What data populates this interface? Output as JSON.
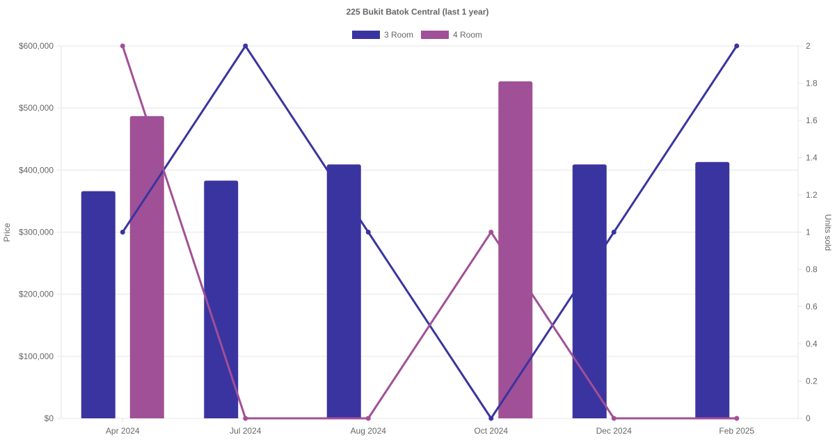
{
  "chart_data": {
    "type": "bar",
    "title": "225 Bukit Batok Central (last 1 year)",
    "categories": [
      "Apr 2024",
      "Jul 2024",
      "Aug 2024",
      "Oct 2024",
      "Dec 2024",
      "Feb 2025"
    ],
    "y_left": {
      "label": "Price",
      "ylim": [
        0,
        600000
      ],
      "ticks": [
        "$0",
        "$100,000",
        "$200,000",
        "$300,000",
        "$400,000",
        "$500,000",
        "$600,000"
      ]
    },
    "y_right": {
      "label": "Units sold",
      "ylim": [
        0,
        2
      ],
      "ticks": [
        "0",
        "0.2",
        "0.4",
        "0.6",
        "0.8",
        "1",
        "1.2",
        "1.4",
        "1.6",
        "1.8",
        "2"
      ]
    },
    "legend": {
      "placement": "top"
    },
    "grid": true,
    "series": [
      {
        "name": "3 Room",
        "color": "#3a34a0",
        "price": [
          366000,
          383000,
          409000,
          null,
          409000,
          413000
        ],
        "units": [
          1,
          2,
          1,
          0,
          1,
          2
        ]
      },
      {
        "name": "4 Room",
        "color": "#a05096",
        "price": [
          487000,
          null,
          null,
          543000,
          null,
          null
        ],
        "units": [
          2,
          0,
          0,
          1,
          0,
          0
        ]
      }
    ]
  }
}
